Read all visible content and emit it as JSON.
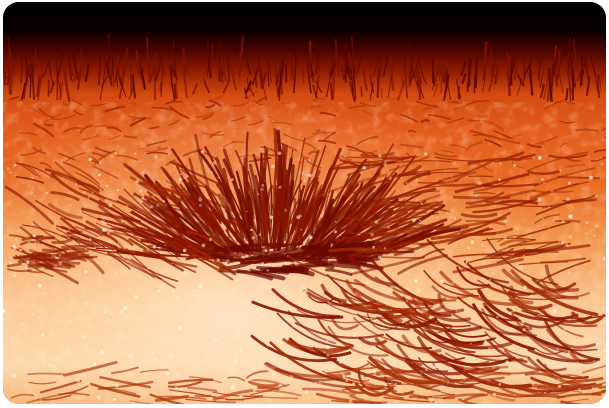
{
  "image": {
    "subject": "solar-chromosphere",
    "colors": {
      "space": "#000000",
      "limb": "#6a0a00",
      "base": "#e0561a",
      "surface_light": "#ffd2a3",
      "hot": "#fff4e0",
      "fibril": "#8a1500"
    }
  }
}
